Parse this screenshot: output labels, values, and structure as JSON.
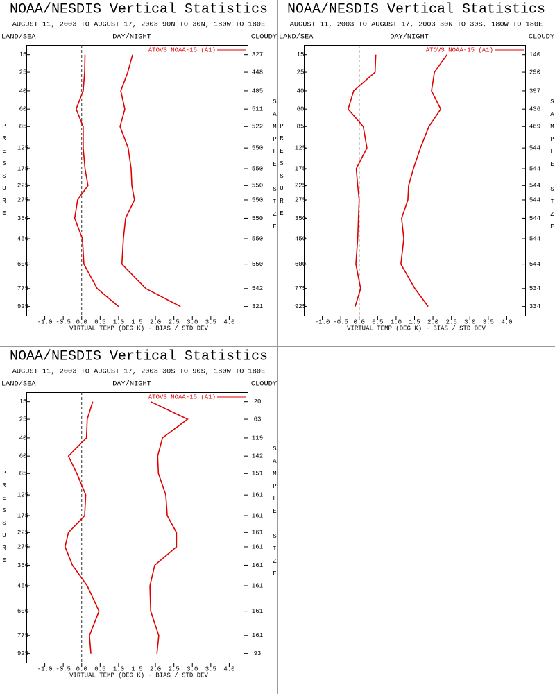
{
  "chart_data": [
    {
      "type": "line",
      "title": "NOAA/NESDIS Vertical Statistics",
      "subtitle": "AUGUST 11, 2003 TO AUGUST 17, 2003  90N TO 30N, 180W TO 180E",
      "left_label": "LAND/SEA",
      "center_label": "DAY/NIGHT",
      "right_label": "CLOUDY",
      "ylabel": "PRESSURE",
      "y2label": "SAMPLE SIZE",
      "xlabel": "VIRTUAL TEMP (DEG K) - BIAS / STD DEV",
      "yscale": "exner",
      "ylim": [
        1010,
        11
      ],
      "y": [
        15,
        25,
        40,
        60,
        85,
        125,
        175,
        225,
        275,
        350,
        450,
        600,
        775,
        925
      ],
      "yticks": [
        15,
        25,
        40,
        60,
        85,
        125,
        175,
        225,
        275,
        350,
        450,
        600,
        775,
        925
      ],
      "sample_size": [
        327,
        448,
        485,
        511,
        522,
        550,
        550,
        550,
        550,
        550,
        550,
        550,
        542,
        321
      ],
      "xlim": [
        -1.5,
        4.5
      ],
      "xticks": [
        {
          "value": -1,
          "label": "-1.0"
        },
        -0.5,
        {
          "value": 0,
          "label": "0.0"
        },
        0.5,
        {
          "value": 1,
          "label": "1.0"
        },
        1.5,
        {
          "value": 2,
          "label": "2.0"
        },
        2.5,
        {
          "value": 3,
          "label": "3.0"
        },
        3.5,
        {
          "value": 4,
          "label": "4.0"
        }
      ],
      "series": [
        {
          "name": "ATOVS NOAA-15 (A1)",
          "color": "#e00000",
          "values": [
            0.09,
            0.08,
            0.04,
            -0.15,
            0.04,
            0.04,
            0.09,
            0.17,
            -0.11,
            -0.19,
            0.02,
            0.06,
            0.42,
            1.0
          ],
          "std_dev": [
            1.38,
            1.25,
            1.06,
            1.17,
            1.04,
            1.26,
            1.34,
            1.36,
            1.43,
            1.19,
            1.13,
            1.09,
            1.74,
            2.68
          ]
        }
      ]
    },
    {
      "type": "line",
      "title": "NOAA/NESDIS Vertical Statistics",
      "subtitle": "AUGUST 11, 2003 TO AUGUST 17, 2003  30N TO 30S, 180W TO 180E",
      "left_label": "LAND/SEA",
      "center_label": "DAY/NIGHT",
      "right_label": "CLOUDY",
      "ylabel": "PRESSURE",
      "y2label": "SAMPLE SIZE",
      "xlabel": "VIRTUAL TEMP (DEG K) - BIAS / STD DEV",
      "yscale": "exner",
      "ylim": [
        1010,
        11
      ],
      "y": [
        15,
        25,
        40,
        60,
        85,
        125,
        175,
        225,
        275,
        350,
        450,
        600,
        775,
        925
      ],
      "yticks": [
        15,
        25,
        40,
        60,
        85,
        125,
        175,
        225,
        275,
        350,
        450,
        600,
        775,
        925
      ],
      "sample_size": [
        140,
        290,
        397,
        436,
        469,
        544,
        544,
        544,
        544,
        544,
        544,
        544,
        534,
        334
      ],
      "xlim": [
        -1.5,
        4.5
      ],
      "xticks": [
        {
          "value": -1,
          "label": "-1.0"
        },
        -0.5,
        {
          "value": 0,
          "label": "0.0"
        },
        0.5,
        {
          "value": 1,
          "label": "1.0"
        },
        1.5,
        {
          "value": 2,
          "label": "2.0"
        },
        2.5,
        {
          "value": 3,
          "label": "3.0"
        },
        3.5,
        {
          "value": 4,
          "label": "4.0"
        }
      ],
      "series": [
        {
          "name": "ATOVS NOAA-15 (A1)",
          "color": "#e00000",
          "values": [
            0.45,
            0.43,
            -0.15,
            -0.3,
            0.11,
            0.21,
            -0.08,
            -0.04,
            0.0,
            -0.02,
            -0.04,
            -0.09,
            0.04,
            -0.11
          ],
          "std_dev": [
            2.38,
            2.04,
            1.96,
            2.21,
            1.89,
            1.66,
            1.47,
            1.34,
            1.32,
            1.15,
            1.21,
            1.13,
            1.51,
            1.87
          ]
        }
      ]
    },
    {
      "type": "line",
      "title": "NOAA/NESDIS Vertical Statistics",
      "subtitle": "AUGUST 11, 2003 TO AUGUST 17, 2003  30S TO 90S, 180W TO 180E",
      "left_label": "LAND/SEA",
      "center_label": "DAY/NIGHT",
      "right_label": "CLOUDY",
      "ylabel": "PRESSURE",
      "y2label": "SAMPLE SIZE",
      "xlabel": "VIRTUAL TEMP (DEG K) - BIAS / STD DEV",
      "yscale": "exner",
      "ylim": [
        1010,
        11
      ],
      "y": [
        15,
        25,
        40,
        60,
        85,
        125,
        175,
        225,
        275,
        350,
        450,
        600,
        775,
        925
      ],
      "yticks": [
        15,
        25,
        40,
        60,
        85,
        125,
        175,
        225,
        275,
        350,
        450,
        600,
        775,
        925
      ],
      "sample_size": [
        20,
        63,
        119,
        142,
        151,
        161,
        161,
        161,
        161,
        161,
        161,
        161,
        161,
        93
      ],
      "xlim": [
        -1.5,
        4.5
      ],
      "xticks": [
        {
          "value": -1,
          "label": "-1.0"
        },
        -0.5,
        {
          "value": 0,
          "label": "0.0"
        },
        0.5,
        {
          "value": 1,
          "label": "1.0"
        },
        1.5,
        {
          "value": 2,
          "label": "2.0"
        },
        2.5,
        {
          "value": 3,
          "label": "3.0"
        },
        3.5,
        {
          "value": 4,
          "label": "4.0"
        }
      ],
      "series": [
        {
          "name": "ATOVS NOAA-15 (A1)",
          "color": "#e00000",
          "values": [
            0.3,
            0.15,
            0.13,
            -0.36,
            -0.13,
            0.11,
            0.08,
            -0.36,
            -0.45,
            -0.25,
            0.15,
            0.47,
            0.21,
            0.25
          ],
          "std_dev": [
            1.87,
            2.87,
            2.19,
            2.06,
            2.08,
            2.28,
            2.32,
            2.57,
            2.57,
            1.98,
            1.85,
            1.87,
            2.09,
            2.04
          ]
        }
      ]
    }
  ]
}
